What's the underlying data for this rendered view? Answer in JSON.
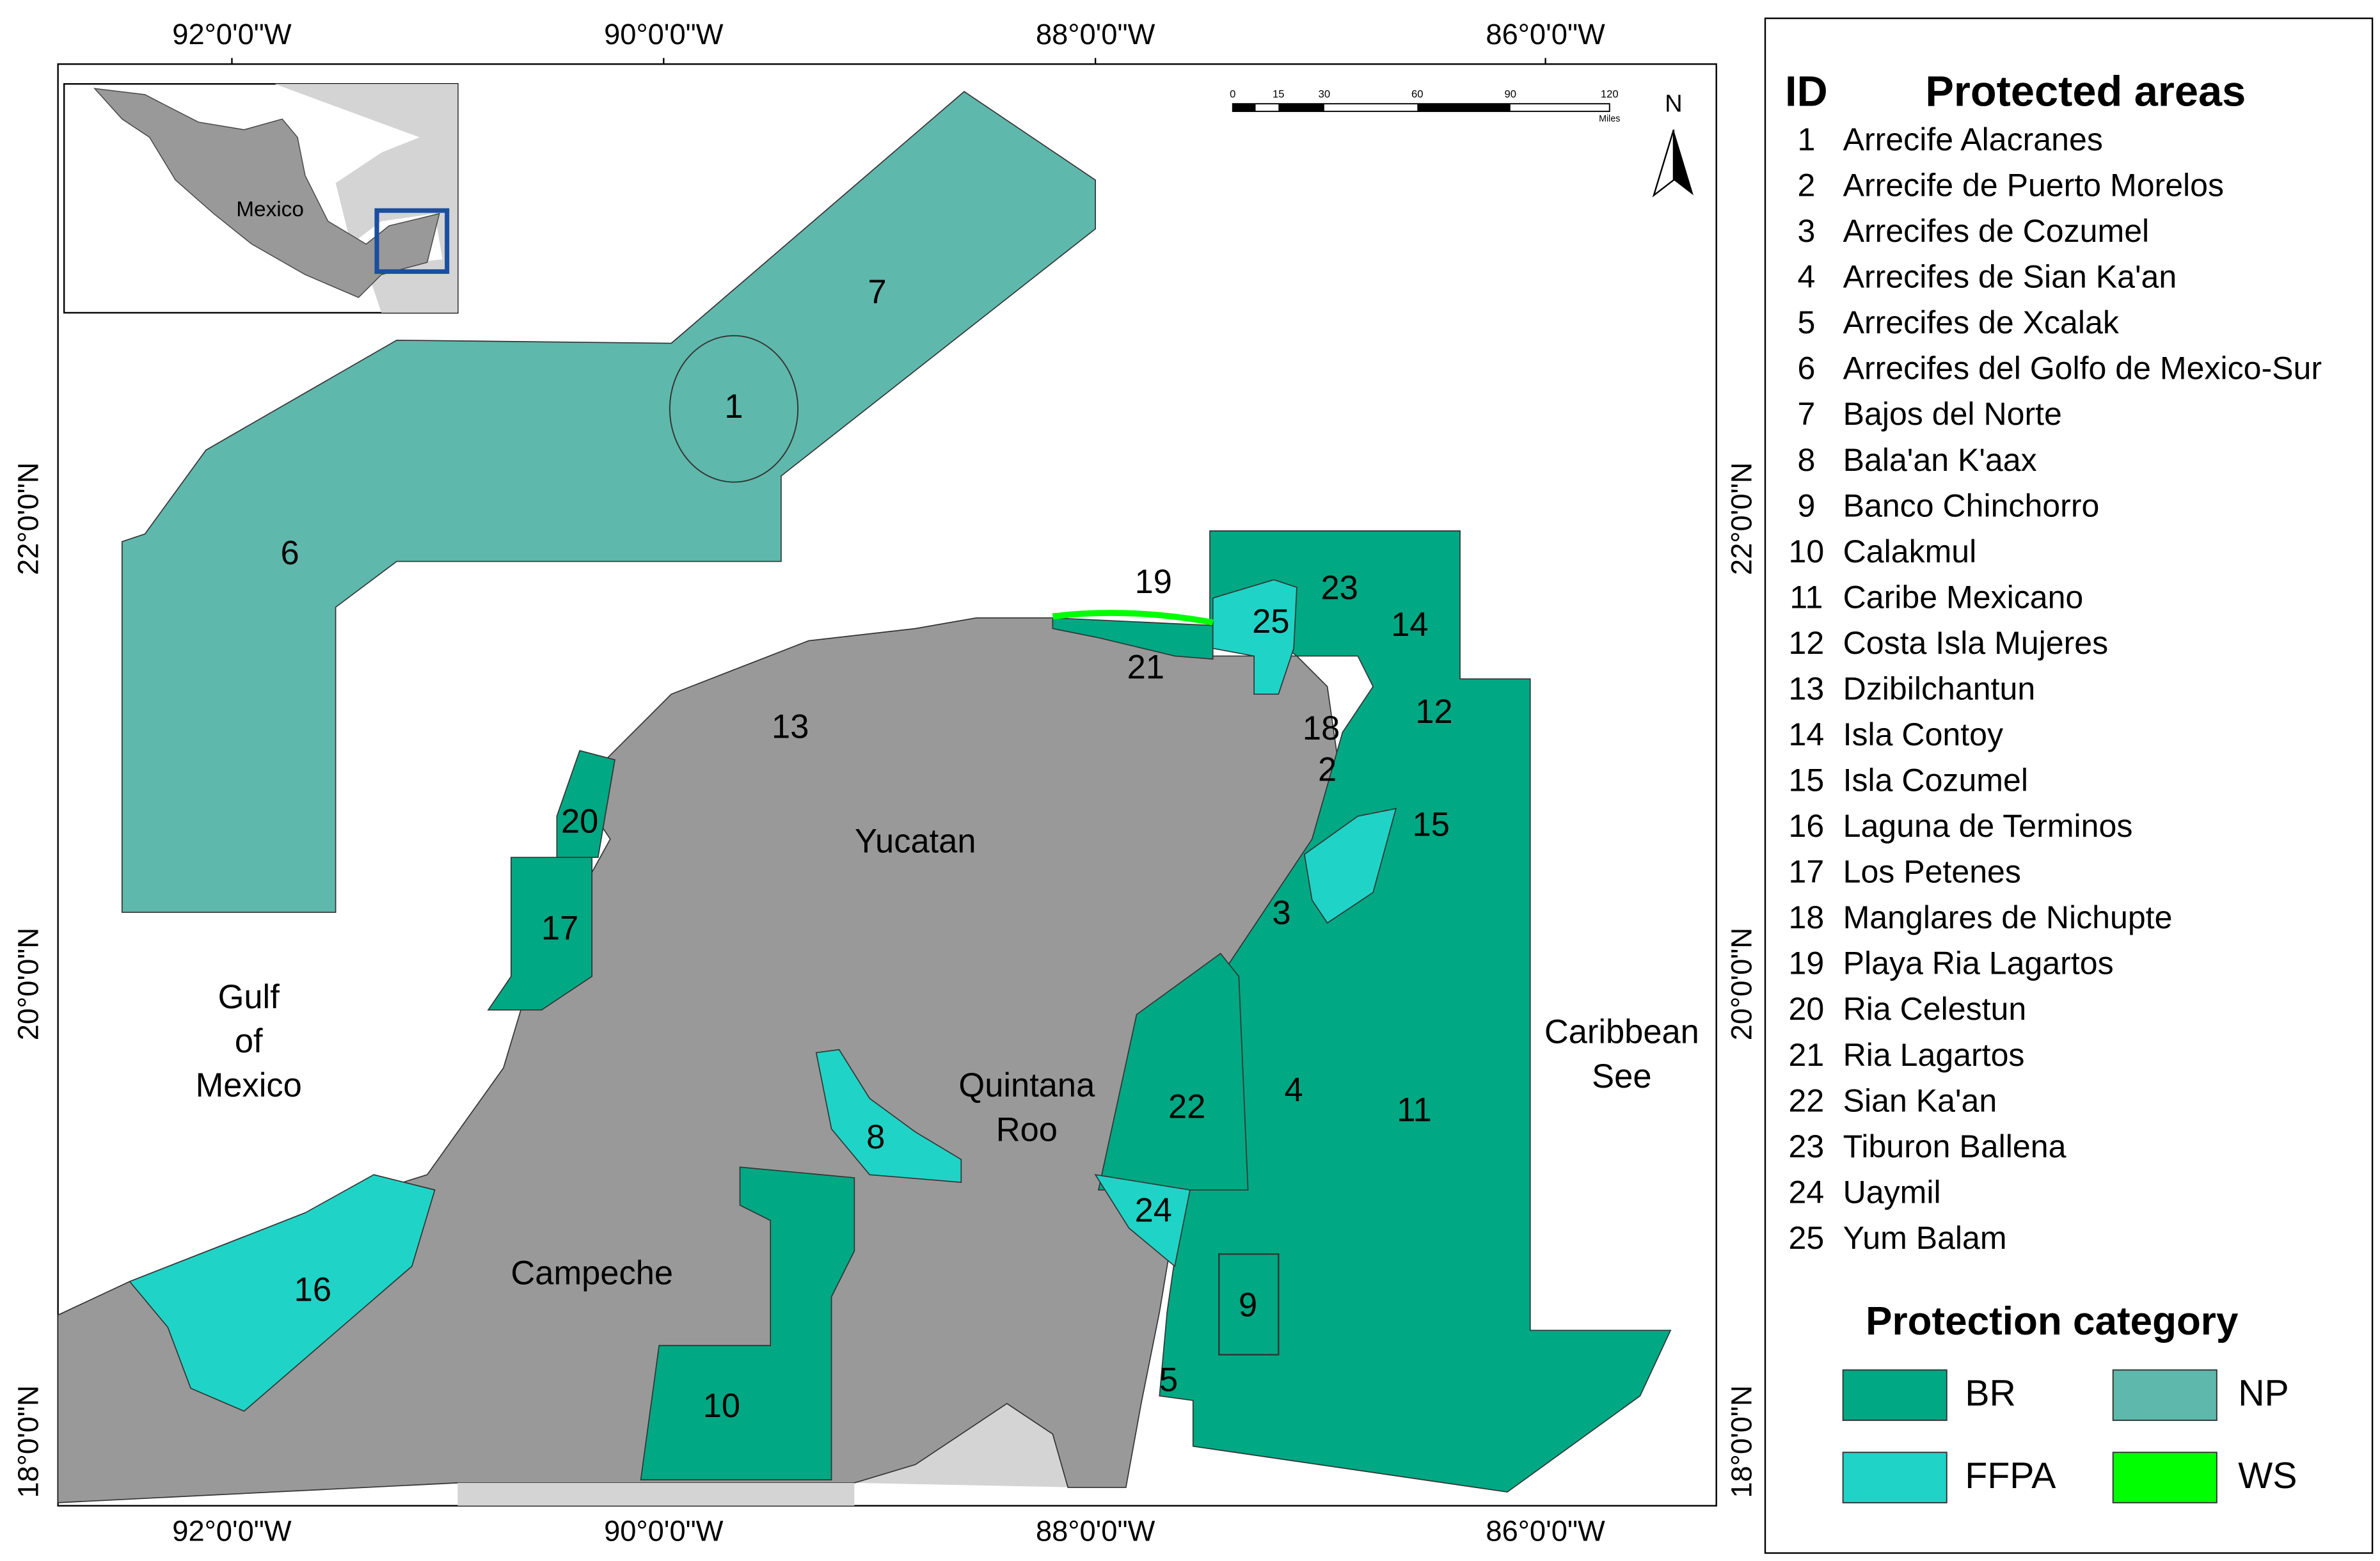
{
  "map": {
    "lon_labels": [
      "92°0'0\"W",
      "90°0'0\"W",
      "88°0'0\"W",
      "86°0'0\"W"
    ],
    "lat_labels": [
      "22°0'0\"N",
      "20°0'0\"N",
      "18°0'0\"N"
    ],
    "inset_label": "Mexico",
    "scale_ticks": [
      "0",
      "15",
      "30",
      "60",
      "90",
      "120"
    ],
    "scale_unit": "Miles",
    "north": "N",
    "region_labels": {
      "yucatan": "Yucatan",
      "campeche": "Campeche",
      "quintana": [
        "Quintana",
        "Roo"
      ],
      "gulf": [
        "Gulf",
        "of",
        "Mexico"
      ],
      "caribbean": [
        "Caribbean",
        "See"
      ]
    }
  },
  "legend": {
    "id_header": "ID",
    "name_header": "Protected areas",
    "areas": [
      {
        "id": "1",
        "name": "Arrecife Alacranes"
      },
      {
        "id": "2",
        "name": "Arrecife de Puerto Morelos"
      },
      {
        "id": "3",
        "name": "Arrecifes de Cozumel"
      },
      {
        "id": "4",
        "name": "Arrecifes de Sian Ka'an"
      },
      {
        "id": "5",
        "name": "Arrecifes de Xcalak"
      },
      {
        "id": "6",
        "name": "Arrecifes del Golfo de Mexico-Sur"
      },
      {
        "id": "7",
        "name": "Bajos del Norte"
      },
      {
        "id": "8",
        "name": "Bala'an K'aax"
      },
      {
        "id": "9",
        "name": "Banco Chinchorro"
      },
      {
        "id": "10",
        "name": "Calakmul"
      },
      {
        "id": "11",
        "name": "Caribe Mexicano"
      },
      {
        "id": "12",
        "name": "Costa Isla Mujeres"
      },
      {
        "id": "13",
        "name": "Dzibilchantun"
      },
      {
        "id": "14",
        "name": "Isla Contoy"
      },
      {
        "id": "15",
        "name": "Isla Cozumel"
      },
      {
        "id": "16",
        "name": "Laguna de Terminos"
      },
      {
        "id": "17",
        "name": "Los Petenes"
      },
      {
        "id": "18",
        "name": "Manglares de Nichupte"
      },
      {
        "id": "19",
        "name": "Playa Ria Lagartos"
      },
      {
        "id": "20",
        "name": "Ria Celestun"
      },
      {
        "id": "21",
        "name": "Ria Lagartos"
      },
      {
        "id": "22",
        "name": "Sian Ka'an"
      },
      {
        "id": "23",
        "name": "Tiburon Ballena"
      },
      {
        "id": "24",
        "name": "Uaymil"
      },
      {
        "id": "25",
        "name": "Yum Balam"
      }
    ],
    "category_title": "Protection category",
    "categories": [
      {
        "code": "BR",
        "color": "#00a883"
      },
      {
        "code": "NP",
        "color": "#5fb8ac"
      },
      {
        "code": "FFPA",
        "color": "#1fd4c6"
      },
      {
        "code": "WS",
        "color": "#00ff00"
      }
    ]
  }
}
